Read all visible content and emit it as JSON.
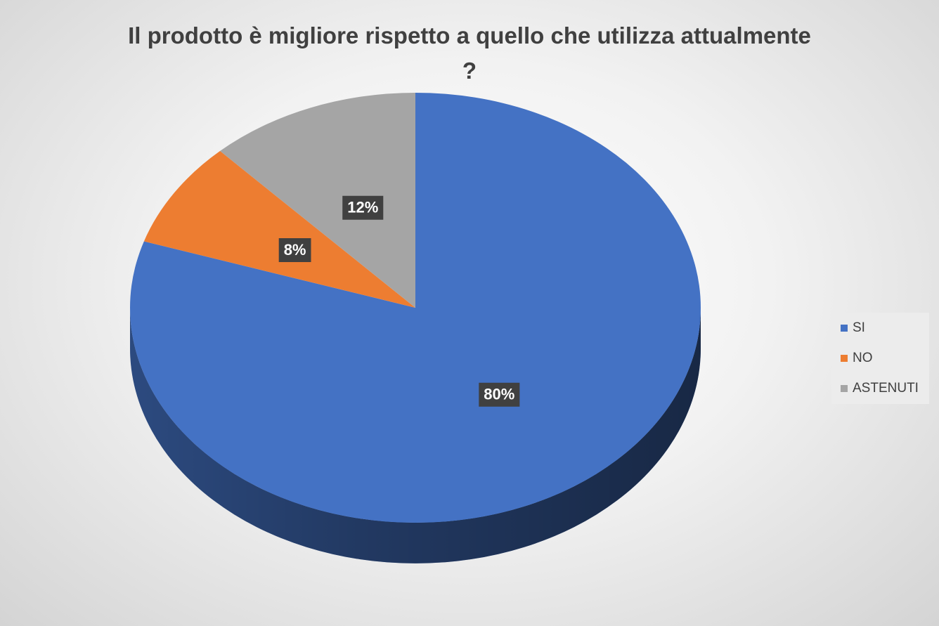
{
  "chart_data": {
    "type": "pie",
    "title": "Il prodotto è migliore rispetto a quello che utilizza attualmente ?",
    "categories": [
      "SI",
      "NO",
      "ASTENUTI"
    ],
    "values": [
      80,
      8,
      12
    ],
    "value_labels": [
      "80%",
      "8%",
      "12%"
    ],
    "colors": [
      "#4472c4",
      "#ed7d31",
      "#a5a5a5"
    ],
    "legend": "right"
  }
}
